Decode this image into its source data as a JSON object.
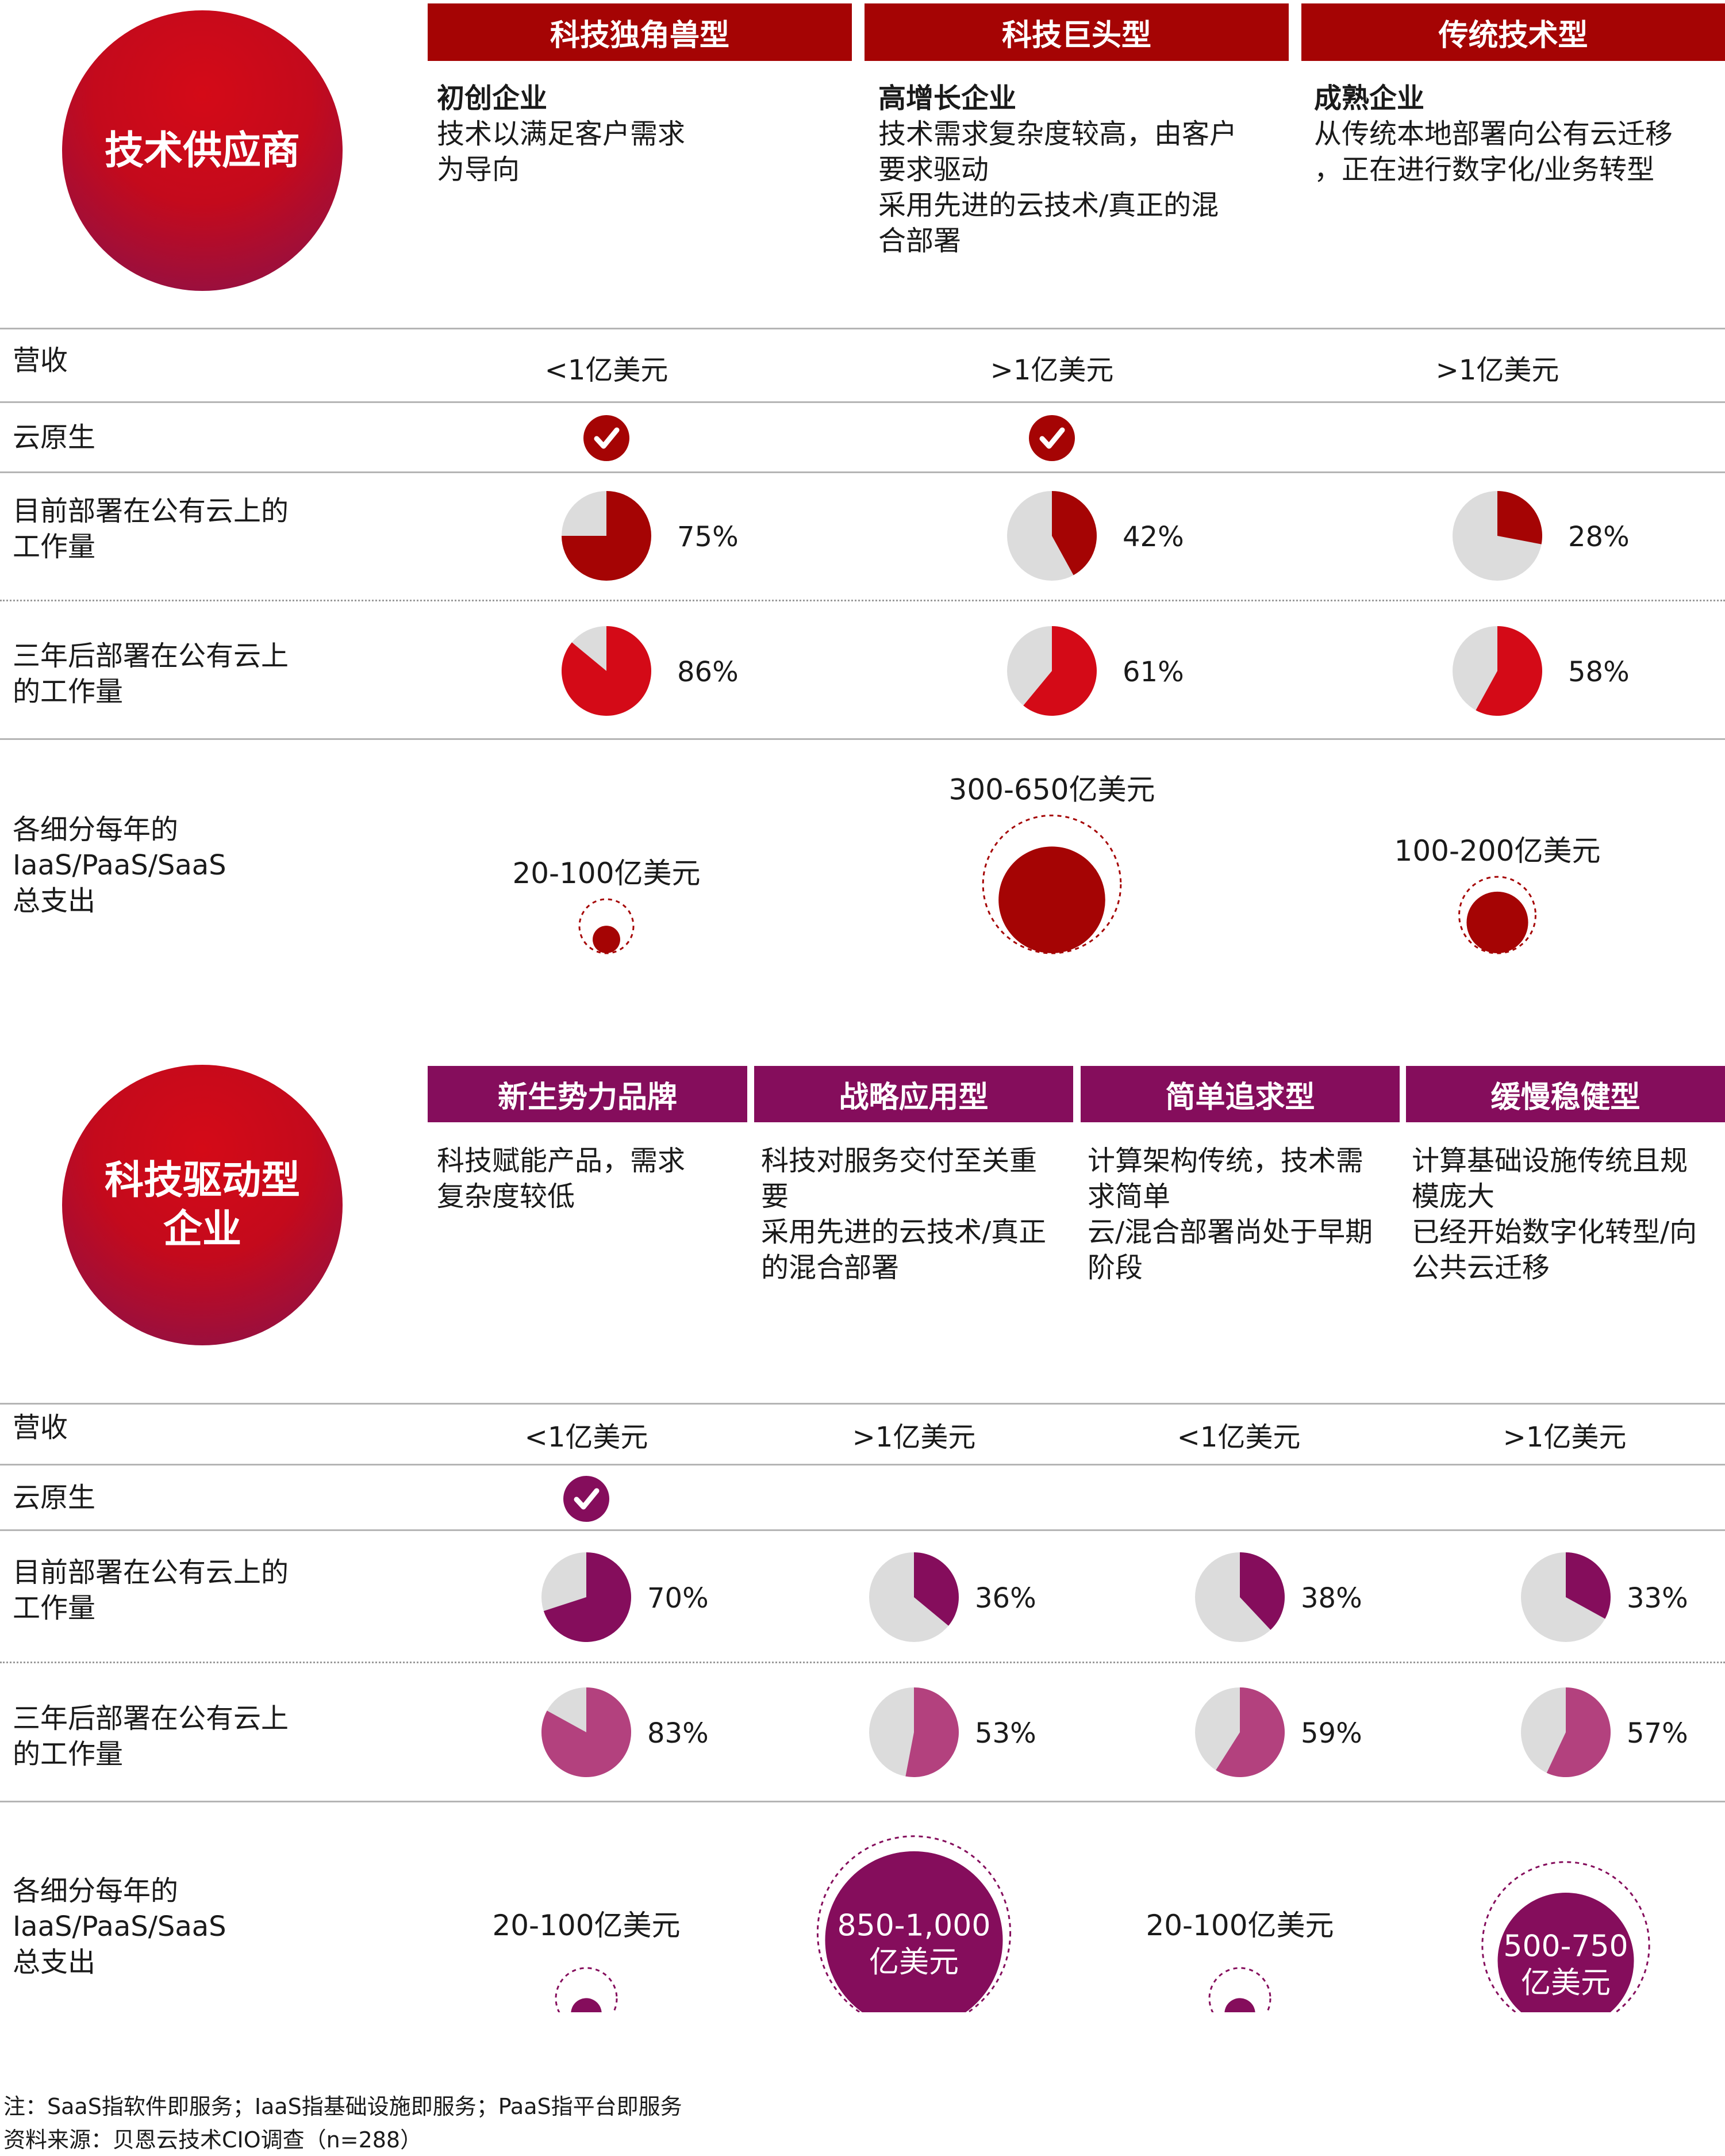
{
  "colors": {
    "red_dark": "#a50404",
    "red_bright": "#d40a17",
    "purple_dark": "#850d5c",
    "purple_light": "#b3417e",
    "pie_bg": "#dcdcdc"
  },
  "section1": {
    "badge": "技术供应商",
    "columns": [
      {
        "header": "科技独角兽型",
        "title": "初创企业",
        "lines": [
          "技术以满足客户需求",
          "为导向"
        ]
      },
      {
        "header": "科技巨头型",
        "title": "高增长企业",
        "lines": [
          "技术需求复杂度较高，由客户",
          "要求驱动",
          "采用先进的云技术/真正的混",
          "合部署"
        ]
      },
      {
        "header": "传统技术型",
        "title": "成熟企业",
        "lines": [
          "从传统本地部署向公有云迁移",
          "，正在进行数字化/业务转型"
        ]
      }
    ],
    "row_labels": {
      "revenue": "营收",
      "cloud_native": "云原生",
      "current": [
        "目前部署在公有云上的",
        "工作量"
      ],
      "future": [
        "三年后部署在公有云上",
        "的工作量"
      ],
      "spend": [
        "各细分每年的",
        "IaaS/PaaS/SaaS",
        "总支出"
      ]
    }
  },
  "section2": {
    "badge_lines": [
      "科技驱动型",
      "企业"
    ],
    "columns": [
      {
        "header": "新生势力品牌",
        "lines": [
          "科技赋能产品，需求",
          "复杂度较低"
        ]
      },
      {
        "header": "战略应用型",
        "lines": [
          "科技对服务交付至关重",
          "要",
          "采用先进的云技术/真正",
          "的混合部署"
        ]
      },
      {
        "header": "简单追求型",
        "lines": [
          "计算架构传统，技术需",
          "求简单",
          "云/混合部署尚处于早期",
          "阶段"
        ]
      },
      {
        "header": "缓慢稳健型",
        "lines": [
          "计算基础设施传统且规",
          "模庞大",
          "已经开始数字化转型/向",
          "公共云迁移"
        ]
      }
    ],
    "row_labels": {
      "revenue": "营收",
      "cloud_native": "云原生",
      "current": [
        "目前部署在公有云上的",
        "工作量"
      ],
      "future": [
        "三年后部署在公有云上",
        "的工作量"
      ],
      "spend": [
        "各细分每年的",
        "IaaS/PaaS/SaaS",
        "总支出"
      ]
    }
  },
  "chart_data": [
    {
      "type": "table",
      "title": "技术供应商",
      "categories": [
        "科技独角兽型",
        "科技巨头型",
        "传统技术型"
      ],
      "revenue": [
        "<1亿美元",
        ">1亿美元",
        ">1亿美元"
      ],
      "cloud_native": [
        true,
        true,
        false
      ],
      "current_public_cloud_pct": [
        75,
        42,
        28
      ],
      "future_public_cloud_pct": [
        86,
        61,
        58
      ],
      "spend_labels": [
        "20-100亿美元",
        "300-650亿美元",
        "100-200亿美元"
      ]
    },
    {
      "type": "table",
      "title": "科技驱动型企业",
      "categories": [
        "新生势力品牌",
        "战略应用型",
        "简单追求型",
        "缓慢稳健型"
      ],
      "revenue": [
        "<1亿美元",
        ">1亿美元",
        "<1亿美元",
        ">1亿美元"
      ],
      "cloud_native": [
        true,
        false,
        false,
        false
      ],
      "current_public_cloud_pct": [
        70,
        36,
        38,
        33
      ],
      "future_public_cloud_pct": [
        83,
        53,
        59,
        57
      ],
      "spend_labels": [
        "20-100亿美元",
        [
          "850-1,000",
          "亿美元"
        ],
        "20-100亿美元",
        [
          "500-750",
          "亿美元"
        ]
      ]
    }
  ],
  "footnotes": {
    "note": "注：SaaS指软件即服务；IaaS指基础设施即服务；PaaS指平台即服务",
    "source": "资料来源：贝恩云技术CIO调查（n=288）"
  }
}
